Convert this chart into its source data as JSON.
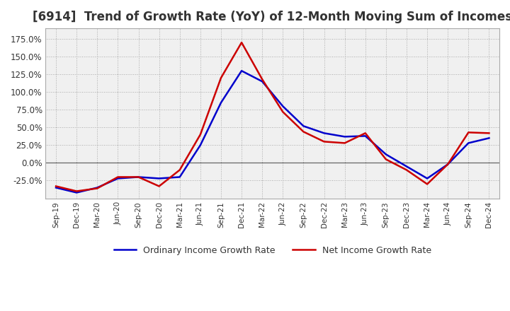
{
  "title": "[6914]  Trend of Growth Rate (YoY) of 12-Month Moving Sum of Incomes",
  "title_fontsize": 12,
  "x_labels": [
    "Sep-19",
    "Dec-19",
    "Mar-20",
    "Jun-20",
    "Sep-20",
    "Dec-20",
    "Mar-21",
    "Jun-21",
    "Sep-21",
    "Dec-21",
    "Mar-22",
    "Jun-22",
    "Sep-22",
    "Dec-22",
    "Mar-23",
    "Jun-23",
    "Sep-23",
    "Dec-23",
    "Mar-24",
    "Jun-24",
    "Sep-24",
    "Dec-24"
  ],
  "ordinary_income": [
    -35.0,
    -42.0,
    -35.0,
    -22.0,
    -20.0,
    -22.0,
    -20.0,
    25.0,
    85.0,
    130.0,
    115.0,
    80.0,
    52.0,
    42.0,
    37.0,
    38.0,
    12.0,
    -5.0,
    -22.0,
    -2.0,
    28.0,
    35.0
  ],
  "net_income": [
    -33.0,
    -40.0,
    -36.0,
    -20.0,
    -20.0,
    -33.0,
    -10.0,
    40.0,
    120.0,
    170.0,
    118.0,
    72.0,
    44.0,
    30.0,
    28.0,
    42.0,
    5.0,
    -10.0,
    -30.0,
    -2.0,
    43.0,
    42.0
  ],
  "ordinary_color": "#0000cc",
  "net_color": "#cc0000",
  "ylim": [
    -50,
    190
  ],
  "yticks": [
    -25.0,
    0.0,
    25.0,
    50.0,
    75.0,
    100.0,
    125.0,
    150.0,
    175.0
  ],
  "grid_color": "#aaaaaa",
  "background_color": "#ffffff",
  "plot_bg_color": "#f0f0f0",
  "legend_ordinary": "Ordinary Income Growth Rate",
  "legend_net": "Net Income Growth Rate",
  "linewidth": 1.8
}
